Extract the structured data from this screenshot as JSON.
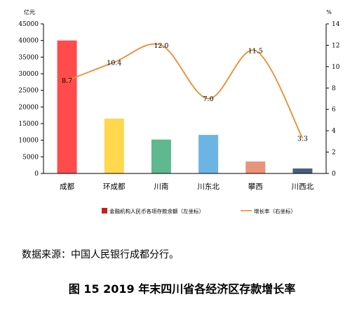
{
  "chart_data": {
    "type": "bar",
    "categories": [
      "成都",
      "环成都",
      "川南",
      "川东北",
      "攀西",
      "川西北"
    ],
    "series": [
      {
        "name": "金融机构人民币各项存款余额（左坐标）",
        "type": "bar",
        "values": [
          40000,
          16500,
          10200,
          11600,
          3600,
          1500
        ],
        "colors": [
          "#ff4b4b",
          "#ffd84d",
          "#5fb88f",
          "#6cb4e4",
          "#e8937a",
          "#45607a"
        ]
      },
      {
        "name": "增长率（右坐标）",
        "type": "line",
        "axis": "right",
        "values": [
          8.7,
          10.4,
          12.0,
          7.0,
          11.5,
          3.3
        ],
        "labels": [
          "8.7",
          "10.4",
          "12.0",
          "7.0",
          "11.5",
          "3.3"
        ],
        "color": "#f08a2e"
      }
    ],
    "y_left": {
      "unit": "亿元",
      "ylim": [
        0,
        45000
      ],
      "ticks": [
        "0",
        "5000",
        "10000",
        "15000",
        "20000",
        "25000",
        "30000",
        "35000",
        "40000",
        "45000"
      ]
    },
    "y_right": {
      "unit": "%",
      "ylim": [
        0,
        14
      ],
      "ticks": [
        "0",
        "2",
        "4",
        "6",
        "8",
        "10",
        "12",
        "14"
      ]
    },
    "grid": false,
    "legend_position": "bottom"
  },
  "source_text": "数据来源：中国人民银行成都分行。",
  "caption": "图 15 2019 年末四川省各经济区存款增长率"
}
